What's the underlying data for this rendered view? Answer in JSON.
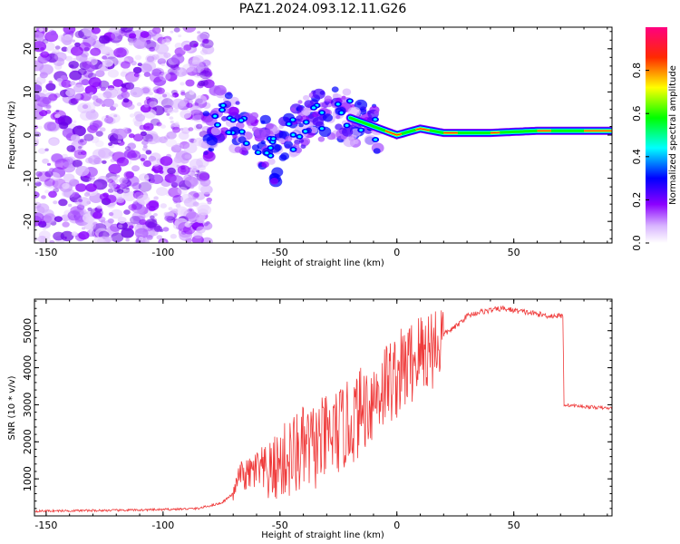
{
  "title": "PAZ1.2024.093.12.11.G26",
  "chart_data": [
    {
      "type": "heatmap",
      "xlabel": "Height of straight line (km)",
      "ylabel": "Frequency (Hz)",
      "xlim": [
        -155,
        92
      ],
      "ylim": [
        -25,
        25
      ],
      "xticks": [
        -150,
        -100,
        -50,
        0,
        50
      ],
      "yticks": [
        -20,
        -10,
        0,
        10,
        20
      ],
      "colorbar": {
        "label": "Normalized spectral amplitude",
        "range": [
          0,
          1
        ],
        "ticks": [
          0.0,
          0.2,
          0.4,
          0.6,
          0.8
        ],
        "colormap": [
          "#ffffff",
          "#8b00ff",
          "#0000ff",
          "#00ffff",
          "#00ff00",
          "#ffff00",
          "#ff0000",
          "#ff0080"
        ]
      },
      "ridge": [
        {
          "x": -78,
          "y": 6
        },
        {
          "x": -70,
          "y": 3
        },
        {
          "x": -60,
          "y": 0
        },
        {
          "x": -52,
          "y": -5
        },
        {
          "x": -45,
          "y": 0
        },
        {
          "x": -35,
          "y": 5
        },
        {
          "x": -25,
          "y": 5
        },
        {
          "x": -15,
          "y": 3
        },
        {
          "x": -5,
          "y": 1
        },
        {
          "x": 0,
          "y": 0
        },
        {
          "x": 10,
          "y": 1.5
        },
        {
          "x": 20,
          "y": 0.5
        },
        {
          "x": 40,
          "y": 0.5
        },
        {
          "x": 60,
          "y": 1
        },
        {
          "x": 90,
          "y": 1
        }
      ]
    },
    {
      "type": "line",
      "xlabel": "Height of straight line (km)",
      "ylabel": "SNR (10 * v/v)",
      "xlim": [
        -155,
        92
      ],
      "ylim": [
        0,
        5850
      ],
      "xticks": [
        -150,
        -100,
        -50,
        0,
        50
      ],
      "yticks": [
        1000,
        2000,
        3000,
        4000,
        5000
      ],
      "color": "#ef3b3b",
      "series": [
        {
          "x": [
            -155,
            -140,
            -120,
            -100,
            -85,
            -75,
            -70,
            -67,
            -65,
            -60,
            -55,
            -50,
            -45,
            -40,
            -35,
            -30,
            -25,
            -20,
            -15,
            -10,
            -5,
            0,
            5,
            10,
            15,
            20,
            25,
            30,
            35,
            40,
            45,
            50,
            55,
            60,
            65,
            71,
            71.5,
            80,
            92
          ],
          "y": [
            130,
            140,
            150,
            170,
            200,
            350,
            600,
            1200,
            1100,
            1300,
            1200,
            1500,
            1700,
            1900,
            2000,
            2200,
            2400,
            2600,
            3000,
            3300,
            3700,
            3900,
            4200,
            4500,
            4700,
            4900,
            5100,
            5400,
            5500,
            5550,
            5600,
            5550,
            5500,
            5450,
            5400,
            5400,
            3000,
            2950,
            2900
          ]
        }
      ]
    }
  ]
}
